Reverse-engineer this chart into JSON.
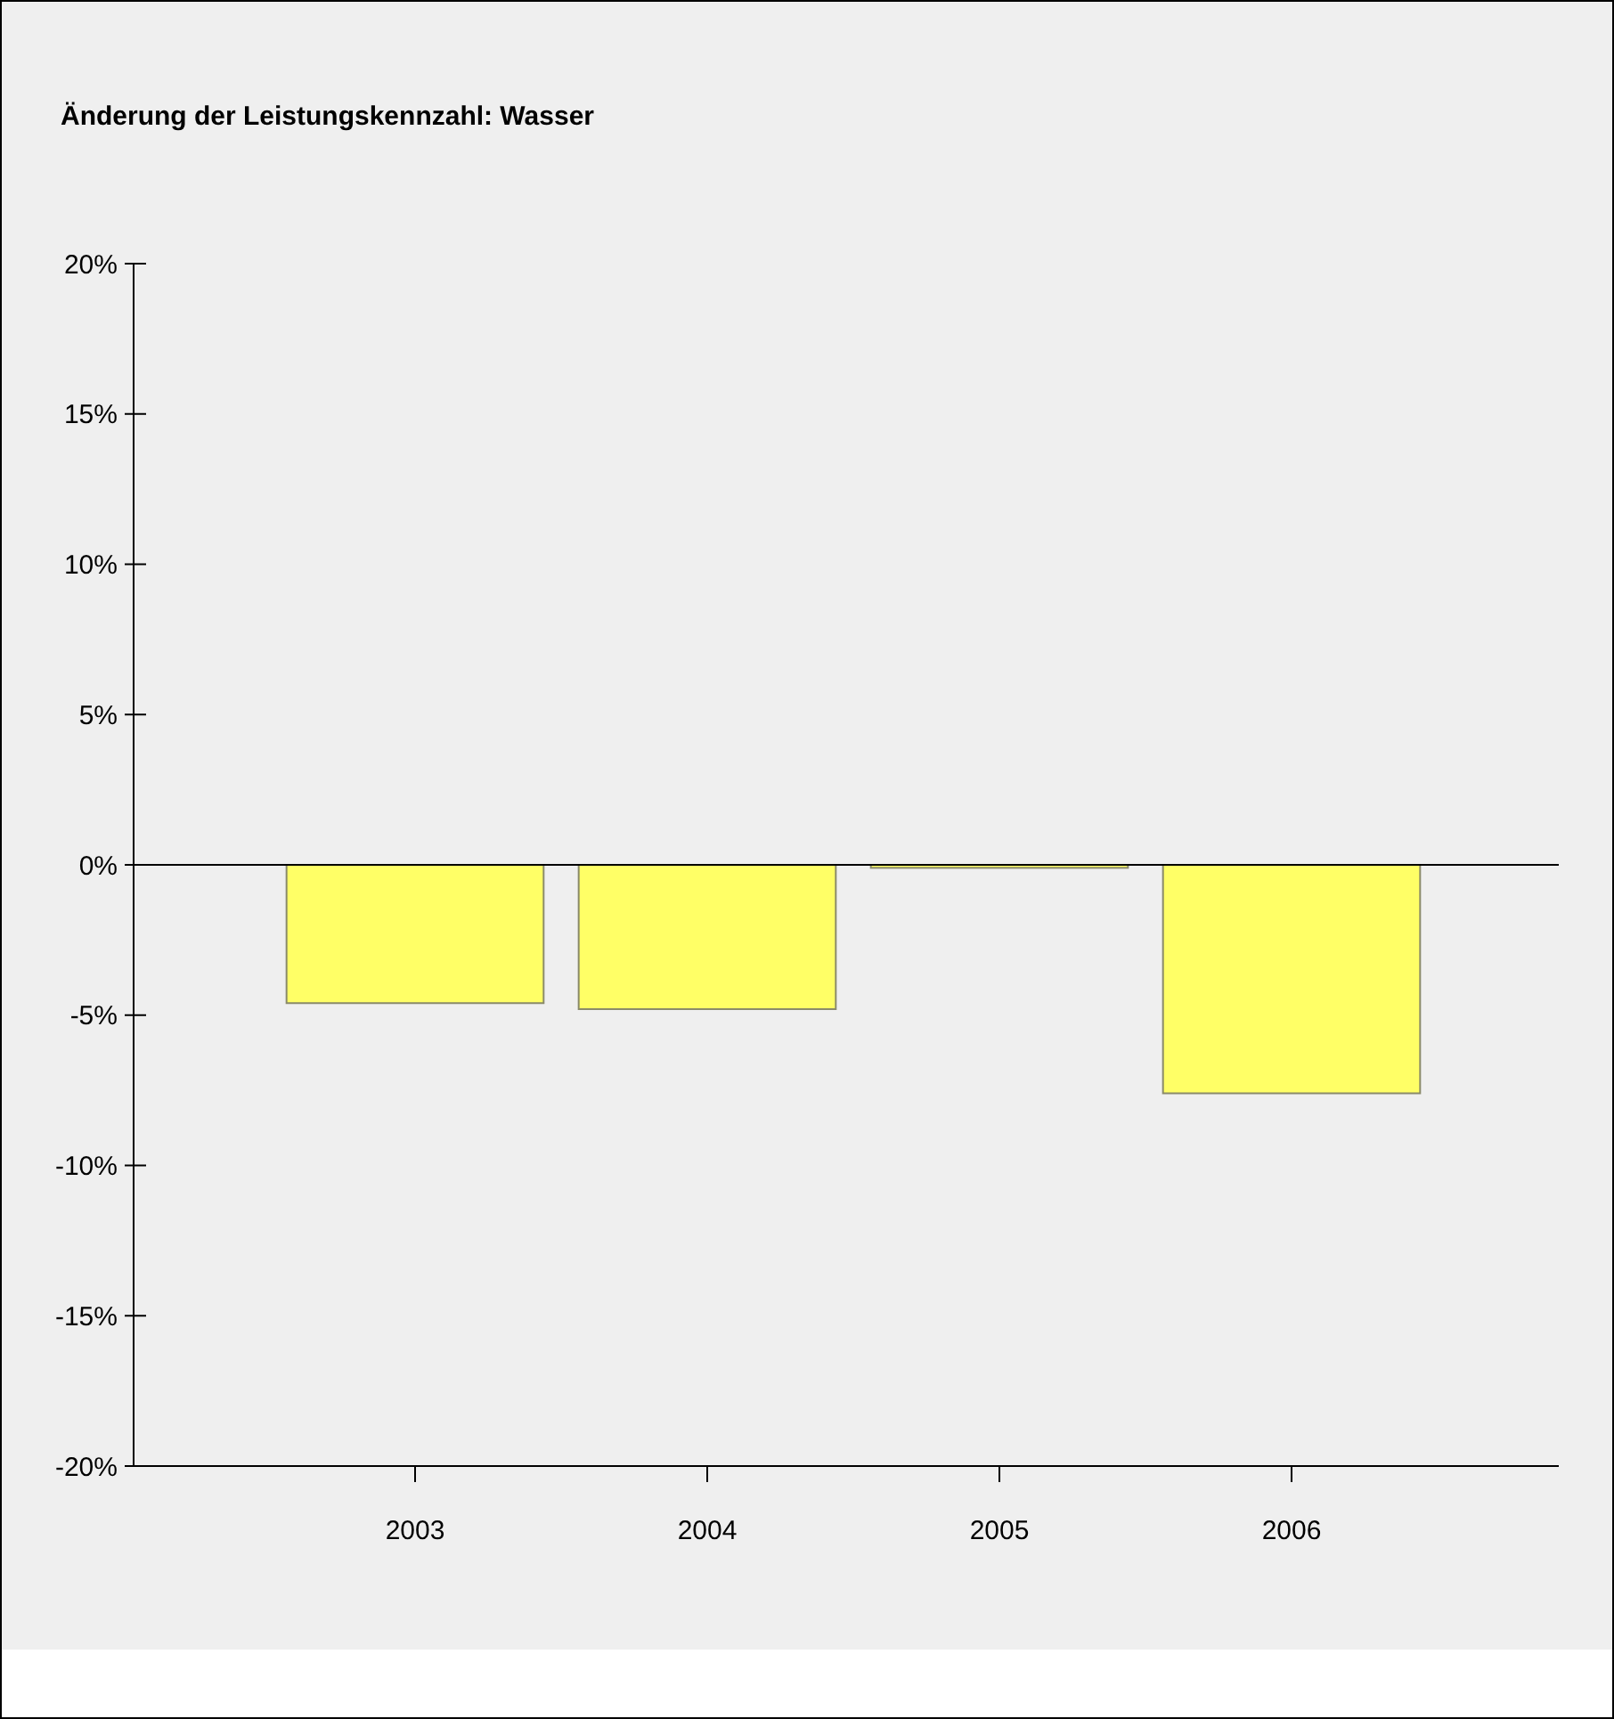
{
  "chart_data": {
    "type": "bar",
    "title": "Änderung der Leistungskennzahl: Wasser",
    "categories": [
      "2003",
      "2004",
      "2005",
      "2006"
    ],
    "values": [
      -4.6,
      -4.8,
      -0.1,
      -7.6
    ],
    "color": "#ffff66",
    "ylim": [
      -20,
      20
    ],
    "yticks": [
      {
        "value": -20,
        "label": "-20%"
      },
      {
        "value": -15,
        "label": "-15%"
      },
      {
        "value": -10,
        "label": "-10%"
      },
      {
        "value": -5,
        "label": "-5%"
      },
      {
        "value": 0,
        "label": "0%"
      },
      {
        "value": 5,
        "label": "5%"
      },
      {
        "value": 10,
        "label": "10%"
      },
      {
        "value": 15,
        "label": "15%"
      },
      {
        "value": 20,
        "label": "20%"
      }
    ],
    "ref_lines": [
      {
        "axis": "y",
        "value": 0,
        "color": "#000000"
      }
    ]
  }
}
